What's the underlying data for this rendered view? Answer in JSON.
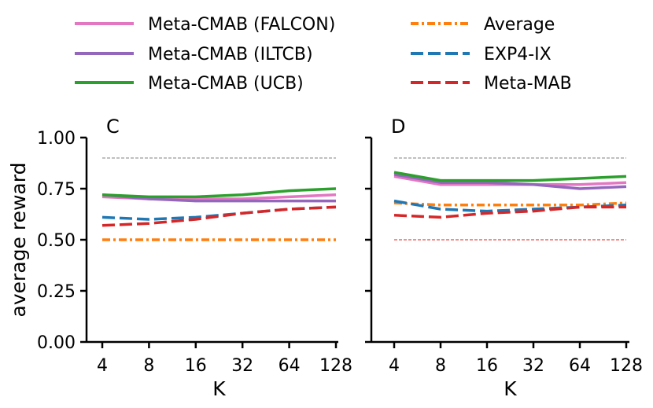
{
  "chart_data": [
    {
      "type": "line",
      "panel_label": "C",
      "xlabel": "K",
      "ylabel": "average reward",
      "x": [
        4,
        8,
        16,
        32,
        64,
        128
      ],
      "x_tick_labels": [
        "4",
        "8",
        "16",
        "32",
        "64",
        "128"
      ],
      "x_scale": "log2",
      "ylim": [
        0,
        1
      ],
      "y_ticks": [
        0,
        0.25,
        0.5,
        0.75,
        1.0
      ],
      "y_tick_labels": [
        "0.00",
        "0.25",
        "0.50",
        "0.75",
        "1.00"
      ],
      "reference_line": {
        "y": 0.9,
        "color": "#808080"
      },
      "series": [
        {
          "name": "Meta-CMAB (FALCON)",
          "key": "falcon",
          "values": [
            0.71,
            0.7,
            0.7,
            0.7,
            0.71,
            0.72
          ]
        },
        {
          "name": "Meta-CMAB (ILTCB)",
          "key": "iltcb",
          "values": [
            0.72,
            0.7,
            0.69,
            0.69,
            0.69,
            0.69
          ]
        },
        {
          "name": "Meta-CMAB (UCB)",
          "key": "ucb",
          "values": [
            0.72,
            0.71,
            0.71,
            0.72,
            0.74,
            0.75
          ]
        },
        {
          "name": "Average",
          "key": "average",
          "values": [
            0.5,
            0.5,
            0.5,
            0.5,
            0.5,
            0.5
          ]
        },
        {
          "name": "EXP4-IX",
          "key": "exp4",
          "values": [
            0.61,
            0.6,
            0.61,
            0.63,
            0.65,
            0.66
          ]
        },
        {
          "name": "Meta-MAB",
          "key": "metamab",
          "values": [
            0.57,
            0.58,
            0.6,
            0.63,
            0.65,
            0.66
          ]
        }
      ]
    },
    {
      "type": "line",
      "panel_label": "D",
      "xlabel": "K",
      "ylabel": "",
      "x": [
        4,
        8,
        16,
        32,
        64,
        128
      ],
      "x_tick_labels": [
        "4",
        "8",
        "16",
        "32",
        "64",
        "128"
      ],
      "x_scale": "log2",
      "ylim": [
        0,
        1
      ],
      "reference_lines": [
        {
          "y": 0.9,
          "color": "#808080"
        },
        {
          "y": 0.5,
          "color": "#e0201b"
        }
      ],
      "series": [
        {
          "name": "Meta-CMAB (FALCON)",
          "key": "falcon",
          "values": [
            0.81,
            0.77,
            0.77,
            0.77,
            0.77,
            0.78
          ]
        },
        {
          "name": "Meta-CMAB (ILTCB)",
          "key": "iltcb",
          "values": [
            0.82,
            0.78,
            0.78,
            0.77,
            0.75,
            0.76
          ]
        },
        {
          "name": "Meta-CMAB (UCB)",
          "key": "ucb",
          "values": [
            0.83,
            0.79,
            0.79,
            0.79,
            0.8,
            0.81
          ]
        },
        {
          "name": "Average",
          "key": "average",
          "values": [
            0.68,
            0.67,
            0.67,
            0.67,
            0.67,
            0.68
          ]
        },
        {
          "name": "EXP4-IX",
          "key": "exp4",
          "values": [
            0.69,
            0.65,
            0.64,
            0.65,
            0.66,
            0.67
          ]
        },
        {
          "name": "Meta-MAB",
          "key": "metamab",
          "values": [
            0.62,
            0.61,
            0.63,
            0.64,
            0.66,
            0.66
          ]
        }
      ]
    }
  ],
  "legend": [
    {
      "key": "falcon",
      "label": "Meta-CMAB (FALCON)",
      "color": "#e377c2",
      "dash": "solid"
    },
    {
      "key": "iltcb",
      "label": "Meta-CMAB (ILTCB)",
      "color": "#9467bd",
      "dash": "solid"
    },
    {
      "key": "ucb",
      "label": "Meta-CMAB (UCB)",
      "color": "#2ca02c",
      "dash": "solid"
    },
    {
      "key": "average",
      "label": "Average",
      "color": "#ff7f0e",
      "dash": "dashdot"
    },
    {
      "key": "exp4",
      "label": "EXP4-IX",
      "color": "#1f77b4",
      "dash": "dashed"
    },
    {
      "key": "metamab",
      "label": "Meta-MAB",
      "color": "#d62728",
      "dash": "dashed"
    }
  ]
}
